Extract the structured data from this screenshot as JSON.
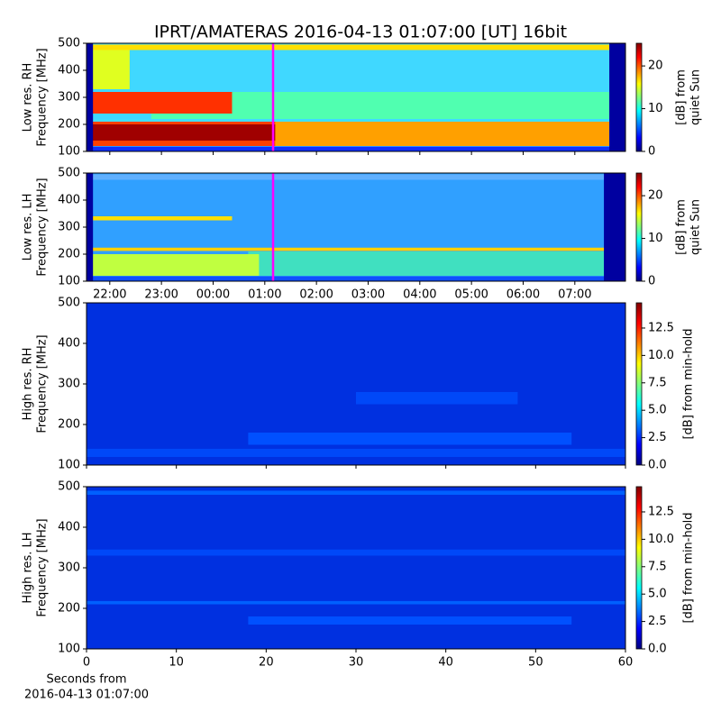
{
  "chart_data": [
    {
      "type": "heatmap",
      "title": "IPRT/AMATERAS 2016-04-13 01:07:00 [UT]   16bit",
      "ylabel": [
        "Low res. RH",
        "Frequency [MHz]"
      ],
      "ylim": [
        100,
        500
      ],
      "yticks": [
        100,
        200,
        300,
        400,
        500
      ],
      "xlim": [
        21.55,
        31.98
      ],
      "xticks": [
        22,
        23,
        24,
        25,
        26,
        27,
        28,
        29,
        30,
        31
      ],
      "xtick_labels": false,
      "colorbar_label": [
        "[dB] from",
        "quiet Sun"
      ],
      "clim": [
        0,
        25.3
      ],
      "cticks": [
        0,
        10,
        20
      ]
    },
    {
      "type": "heatmap",
      "ylabel": [
        "Low res. LH",
        "Frequency [MHz]"
      ],
      "ylim": [
        100,
        500
      ],
      "yticks": [
        100,
        200,
        300,
        400,
        500
      ],
      "xlim": [
        21.55,
        31.98
      ],
      "xticks": [
        {
          "value": 22,
          "label": "22:00"
        },
        {
          "value": 23,
          "label": "23:00"
        },
        {
          "value": 24,
          "label": "00:00"
        },
        {
          "value": 25,
          "label": "01:00"
        },
        {
          "value": 26,
          "label": "02:00"
        },
        {
          "value": 27,
          "label": "03:00"
        },
        {
          "value": 28,
          "label": "04:00"
        },
        {
          "value": 29,
          "label": "05:00"
        },
        {
          "value": 30,
          "label": "06:00"
        },
        {
          "value": 31,
          "label": "07:00"
        }
      ],
      "colorbar_label": [
        "[dB] from",
        "quiet Sun"
      ],
      "clim": [
        0,
        25.3
      ],
      "cticks": [
        0,
        10,
        20
      ]
    },
    {
      "type": "heatmap",
      "ylabel": [
        "High res. RH",
        "Frequency [MHz]"
      ],
      "ylim": [
        100,
        500
      ],
      "yticks": [
        100,
        200,
        300,
        400,
        500
      ],
      "xlim": [
        0,
        60
      ],
      "xticks": [
        0,
        10,
        20,
        30,
        40,
        50,
        60
      ],
      "xtick_labels": false,
      "colorbar_label": [
        "[dB] from min-hold"
      ],
      "clim": [
        0,
        14.8
      ],
      "cticks": [
        {
          "value": 0,
          "label": "0.0"
        },
        2.5,
        {
          "value": 5,
          "label": "5.0"
        },
        7.5,
        {
          "value": 10,
          "label": "10.0"
        },
        12.5
      ]
    },
    {
      "type": "heatmap",
      "ylabel": [
        "High res. LH",
        "Frequency [MHz]"
      ],
      "ylim": [
        100,
        500
      ],
      "yticks": [
        100,
        200,
        300,
        400,
        500
      ],
      "xlim": [
        0,
        60
      ],
      "xticks": [
        0,
        10,
        20,
        30,
        40,
        50,
        60
      ],
      "xlabel": [
        "Seconds from",
        "2016-04-13 01:07:00"
      ],
      "colorbar_label": [
        "[dB] from min-hold"
      ],
      "clim": [
        0,
        14.8
      ],
      "cticks": [
        {
          "value": 0,
          "label": "0.0"
        },
        2.5,
        {
          "value": 5,
          "label": "5.0"
        },
        7.5,
        {
          "value": 10,
          "label": "10.0"
        },
        12.5
      ]
    }
  ]
}
